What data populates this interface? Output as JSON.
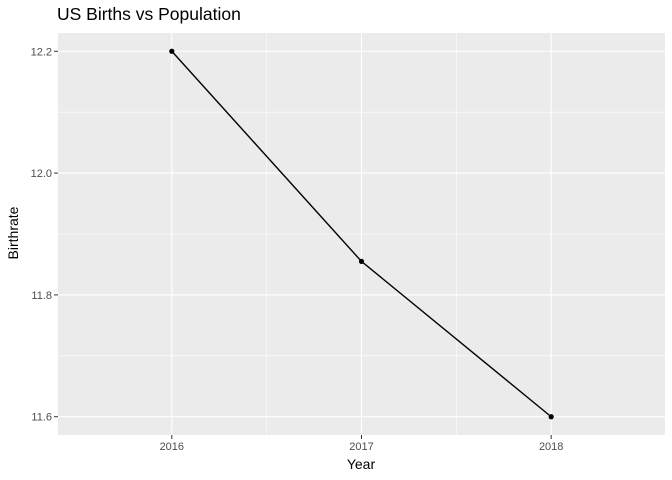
{
  "chart_data": {
    "type": "line",
    "title": "US Births vs Population",
    "xlabel": "Year",
    "ylabel": "Birthrate",
    "x": [
      2016,
      2017,
      2018
    ],
    "y": [
      12.2,
      11.855,
      11.6
    ],
    "xlim": [
      2015.4,
      2018.6
    ],
    "ylim": [
      11.57,
      12.23
    ],
    "x_ticks": [
      "2016",
      "2017",
      "2018"
    ],
    "y_ticks": [
      "11.6",
      "11.8",
      "12.0",
      "12.2"
    ],
    "grid": true,
    "legend": "none",
    "colors": {
      "panel_background": "#ebebeb",
      "grid_line": "#ffffff",
      "series_line": "#000000",
      "tick_mark": "#333333",
      "tick_text": "#4d4d4d"
    }
  }
}
